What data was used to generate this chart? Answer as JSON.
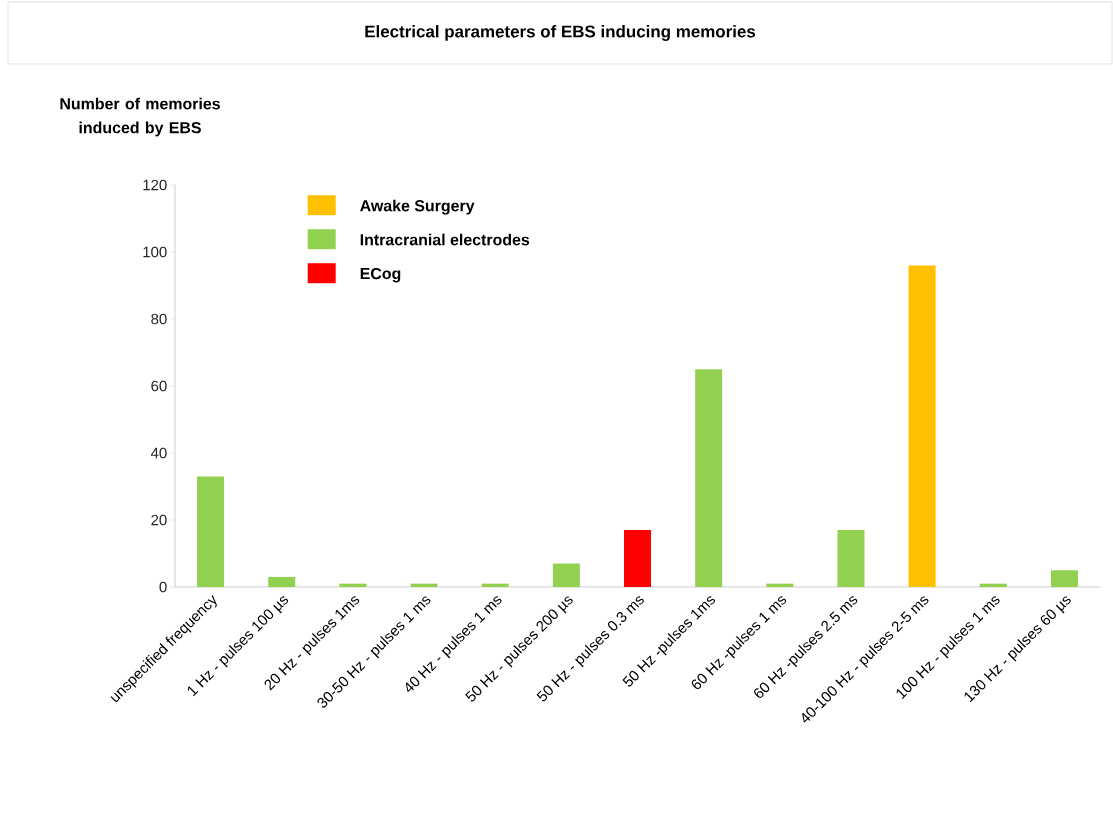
{
  "chart_data": {
    "type": "bar",
    "title": "Electrical parameters of EBS inducing memories",
    "ylabel": "Number of memories induced by EBS",
    "categories": [
      "unspecified frequency",
      "1 Hz - pulses 100 µs",
      "20 Hz - pulses 1ms",
      "30-50 Hz - pulses 1 ms",
      "40 Hz - pulses 1 ms",
      "50 Hz - pulses 200 µs",
      "50 Hz - pulses 0.3 ms",
      "50 Hz -pulses 1ms",
      "60 Hz -pulses 1 ms",
      "60 Hz -pulses 2.5 ms",
      "40-100 Hz - pulses 2-5 ms",
      "100 Hz - pulses 1 ms",
      "130 Hz - pulses 60 µs"
    ],
    "series": [
      {
        "name": "Awake Surgery",
        "color": "#ffc000",
        "values": [
          null,
          null,
          null,
          null,
          null,
          null,
          null,
          null,
          null,
          null,
          96,
          null,
          null
        ]
      },
      {
        "name": "Intracranial electrodes",
        "color": "#92d050",
        "values": [
          33,
          3,
          1,
          1,
          1,
          7,
          null,
          65,
          1,
          17,
          null,
          1,
          5
        ]
      },
      {
        "name": "ECog",
        "color": "#ff0000",
        "values": [
          null,
          null,
          null,
          null,
          null,
          null,
          17,
          null,
          null,
          null,
          null,
          null,
          null
        ]
      }
    ],
    "ylim": [
      0,
      120
    ],
    "yticks": [
      0,
      20,
      40,
      60,
      80,
      100,
      120
    ],
    "legend": "top left"
  }
}
